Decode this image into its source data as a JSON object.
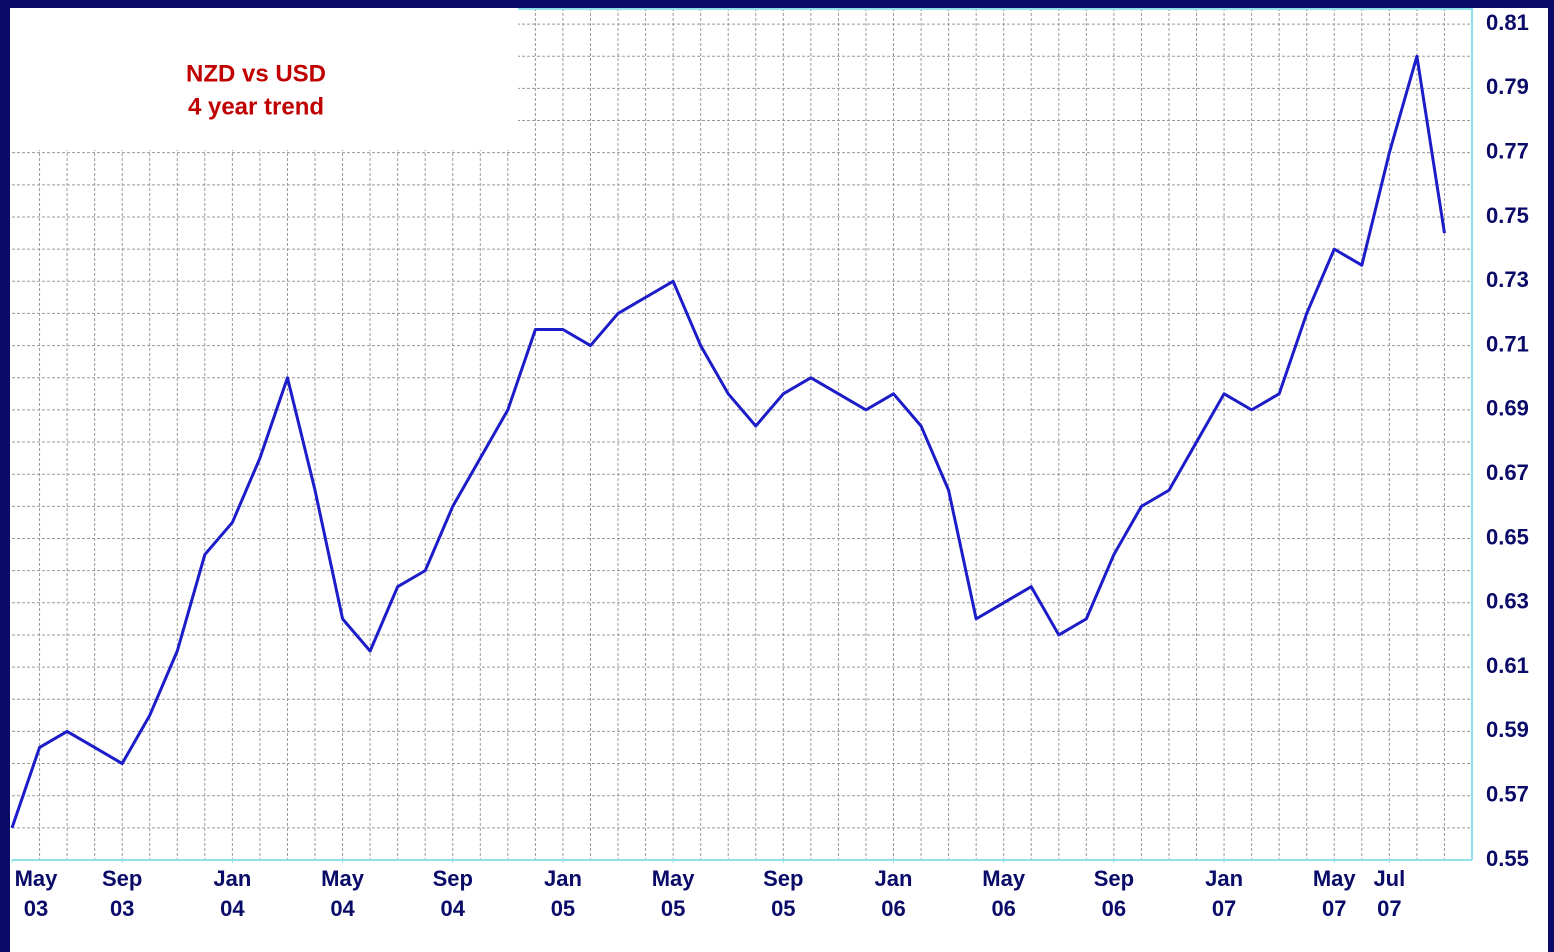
{
  "chart_data": {
    "type": "line",
    "title": "NZD vs USD",
    "subtitle": "4 year trend",
    "x": [
      "2003-05",
      "2003-06",
      "2003-07",
      "2003-08",
      "2003-09",
      "2003-10",
      "2003-11",
      "2003-12",
      "2004-01",
      "2004-02",
      "2004-03",
      "2004-04",
      "2004-05",
      "2004-06",
      "2004-07",
      "2004-08",
      "2004-09",
      "2004-10",
      "2004-11",
      "2004-12",
      "2005-01",
      "2005-02",
      "2005-03",
      "2005-04",
      "2005-05",
      "2005-06",
      "2005-07",
      "2005-08",
      "2005-09",
      "2005-10",
      "2005-11",
      "2005-12",
      "2006-01",
      "2006-02",
      "2006-03",
      "2006-04",
      "2006-05",
      "2006-06",
      "2006-07",
      "2006-08",
      "2006-09",
      "2006-10",
      "2006-11",
      "2006-12",
      "2007-01",
      "2007-02",
      "2007-03",
      "2007-04",
      "2007-05",
      "2007-06",
      "2007-07",
      "2007-08",
      "2007-09"
    ],
    "series": [
      {
        "name": "NZD vs USD",
        "color": "#1c1cc8",
        "values": [
          0.56,
          0.585,
          0.59,
          0.585,
          0.58,
          0.595,
          0.615,
          0.645,
          0.655,
          0.675,
          0.7,
          0.665,
          0.625,
          0.615,
          0.635,
          0.64,
          0.66,
          0.675,
          0.69,
          0.715,
          0.715,
          0.71,
          0.72,
          0.725,
          0.73,
          0.71,
          0.695,
          0.685,
          0.695,
          0.7,
          0.695,
          0.69,
          0.695,
          0.685,
          0.665,
          0.625,
          0.63,
          0.635,
          0.62,
          0.625,
          0.645,
          0.66,
          0.665,
          0.68,
          0.695,
          0.69,
          0.695,
          0.72,
          0.74,
          0.735,
          0.77,
          0.8,
          0.745
        ]
      }
    ],
    "xlim": [
      "2003-05",
      "2007-10"
    ],
    "xticks": [
      {
        "value": "2003-05",
        "label": "May 03"
      },
      {
        "value": "2003-09",
        "label": "Sep 03"
      },
      {
        "value": "2004-01",
        "label": "Jan 04"
      },
      {
        "value": "2004-05",
        "label": "May 04"
      },
      {
        "value": "2004-09",
        "label": "Sep 04"
      },
      {
        "value": "2005-01",
        "label": "Jan 05"
      },
      {
        "value": "2005-05",
        "label": "May 05"
      },
      {
        "value": "2005-09",
        "label": "Sep 05"
      },
      {
        "value": "2006-01",
        "label": "Jan 06"
      },
      {
        "value": "2006-05",
        "label": "May 06"
      },
      {
        "value": "2006-09",
        "label": "Sep 06"
      },
      {
        "value": "2007-01",
        "label": "Jan 07"
      },
      {
        "value": "2007-05",
        "label": "May 07"
      },
      {
        "value": "2007-07",
        "label": "Jul 07"
      }
    ],
    "ylim": [
      0.55,
      0.815
    ],
    "yticks": [
      0.55,
      0.57,
      0.59,
      0.61,
      0.63,
      0.65,
      0.67,
      0.69,
      0.71,
      0.73,
      0.75,
      0.77,
      0.79,
      0.81
    ],
    "grid": true,
    "title_color": "#c00000"
  }
}
